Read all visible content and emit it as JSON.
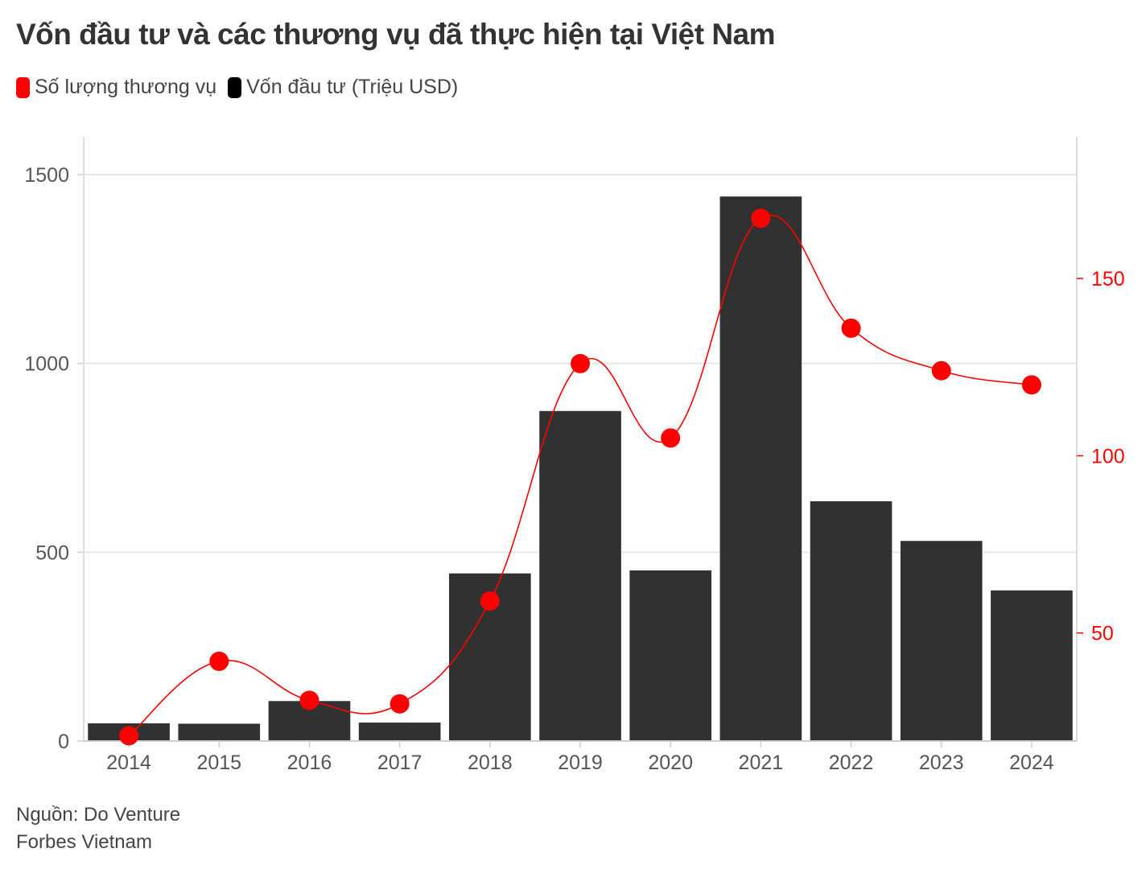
{
  "title": "Vốn đầu tư và các thương vụ đã thực hiện tại Việt Nam",
  "legend": [
    {
      "label": "Số lượng thương vụ",
      "color": "#ff0000"
    },
    {
      "label": "Vốn đầu tư (Triệu USD)",
      "color": "#000000"
    }
  ],
  "footer": {
    "source": "Nguồn: Do Venture",
    "publisher": "Forbes Vietnam"
  },
  "chart_data": {
    "type": "bar",
    "categories": [
      "2014",
      "2015",
      "2016",
      "2017",
      "2018",
      "2019",
      "2020",
      "2021",
      "2022",
      "2023",
      "2024"
    ],
    "series": [
      {
        "name": "Vốn đầu tư (Triệu USD)",
        "type": "bar",
        "axis": "left",
        "color": "#2b2b2b",
        "values": [
          48,
          47,
          107,
          50,
          445,
          875,
          453,
          1443,
          636,
          531,
          400
        ]
      },
      {
        "name": "Số lượng thương vụ",
        "type": "line",
        "axis": "right",
        "color": "#ff0000",
        "smooth": true,
        "values": [
          21,
          42,
          31,
          30,
          59,
          126,
          105,
          167,
          136,
          124,
          120
        ]
      }
    ],
    "y_left": {
      "ticks": [
        0,
        500,
        1000,
        1500
      ],
      "range": [
        0,
        1600
      ]
    },
    "y_right": {
      "ticks": [
        50,
        100,
        150
      ],
      "range": [
        19.5,
        190
      ],
      "color": "#ff0000"
    },
    "grid": true
  }
}
